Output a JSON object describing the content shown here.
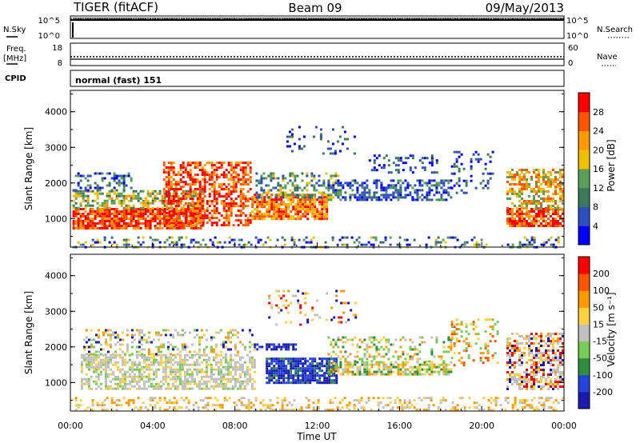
{
  "header": {
    "station": "TIGER (fitACF)",
    "beam": "Beam 09",
    "date": "09/May/2013"
  },
  "top_panels": {
    "nsky_label": "N.Sky",
    "nsearch_label": "N.Search",
    "noise_ticks": [
      "10^5",
      "10^0"
    ],
    "freq_label": "Freq.",
    "freq_unit": "[MHz]",
    "freq_ticks": [
      "18",
      "8"
    ],
    "nave_label": "Nave",
    "nave_ticks": [
      "60",
      "0"
    ],
    "cpid_label": "CPID",
    "cpid_value": "normal (fast) 151"
  },
  "x_axis": {
    "label": "Time UT",
    "ticks": [
      "00:00",
      "04:00",
      "08:00",
      "12:00",
      "16:00",
      "20:00",
      "00:00"
    ]
  },
  "colors": {
    "power": [
      "#0000ff",
      "#2f4fc0",
      "#3a7a5a",
      "#5ba05a",
      "#f0c000",
      "#ff9900",
      "#ff5500",
      "#ff0000"
    ],
    "velocity": [
      "#1a1ab0",
      "#2244dd",
      "#2f8f3f",
      "#77cc55",
      "#c0c0c0",
      "#ffd040",
      "#ff9900",
      "#ff5500",
      "#ff0000"
    ]
  },
  "chart_data": [
    {
      "type": "heatmap",
      "name": "power",
      "ylabel": "Slant Range [km]",
      "yticks": [
        "4000",
        "3000",
        "2000",
        "1000"
      ],
      "ylim": [
        200,
        4600
      ],
      "xlim_hours": [
        0,
        24
      ],
      "colorbar_label": "Power [dB]",
      "colorbar_ticks": [
        "28",
        "24",
        "20",
        "16",
        "12",
        "8",
        "4"
      ],
      "colorbar_range": [
        0,
        32
      ]
    },
    {
      "type": "heatmap",
      "name": "velocity",
      "ylabel": "Slant Range [km]",
      "yticks": [
        "4000",
        "3000",
        "2000",
        "1000"
      ],
      "ylim": [
        200,
        4600
      ],
      "xlim_hours": [
        0,
        24
      ],
      "colorbar_label": "Velocity [m s⁻¹]",
      "colorbar_ticks": [
        "200",
        "100",
        "50",
        "15",
        "-15",
        "-50",
        "-100",
        "-200"
      ]
    }
  ]
}
